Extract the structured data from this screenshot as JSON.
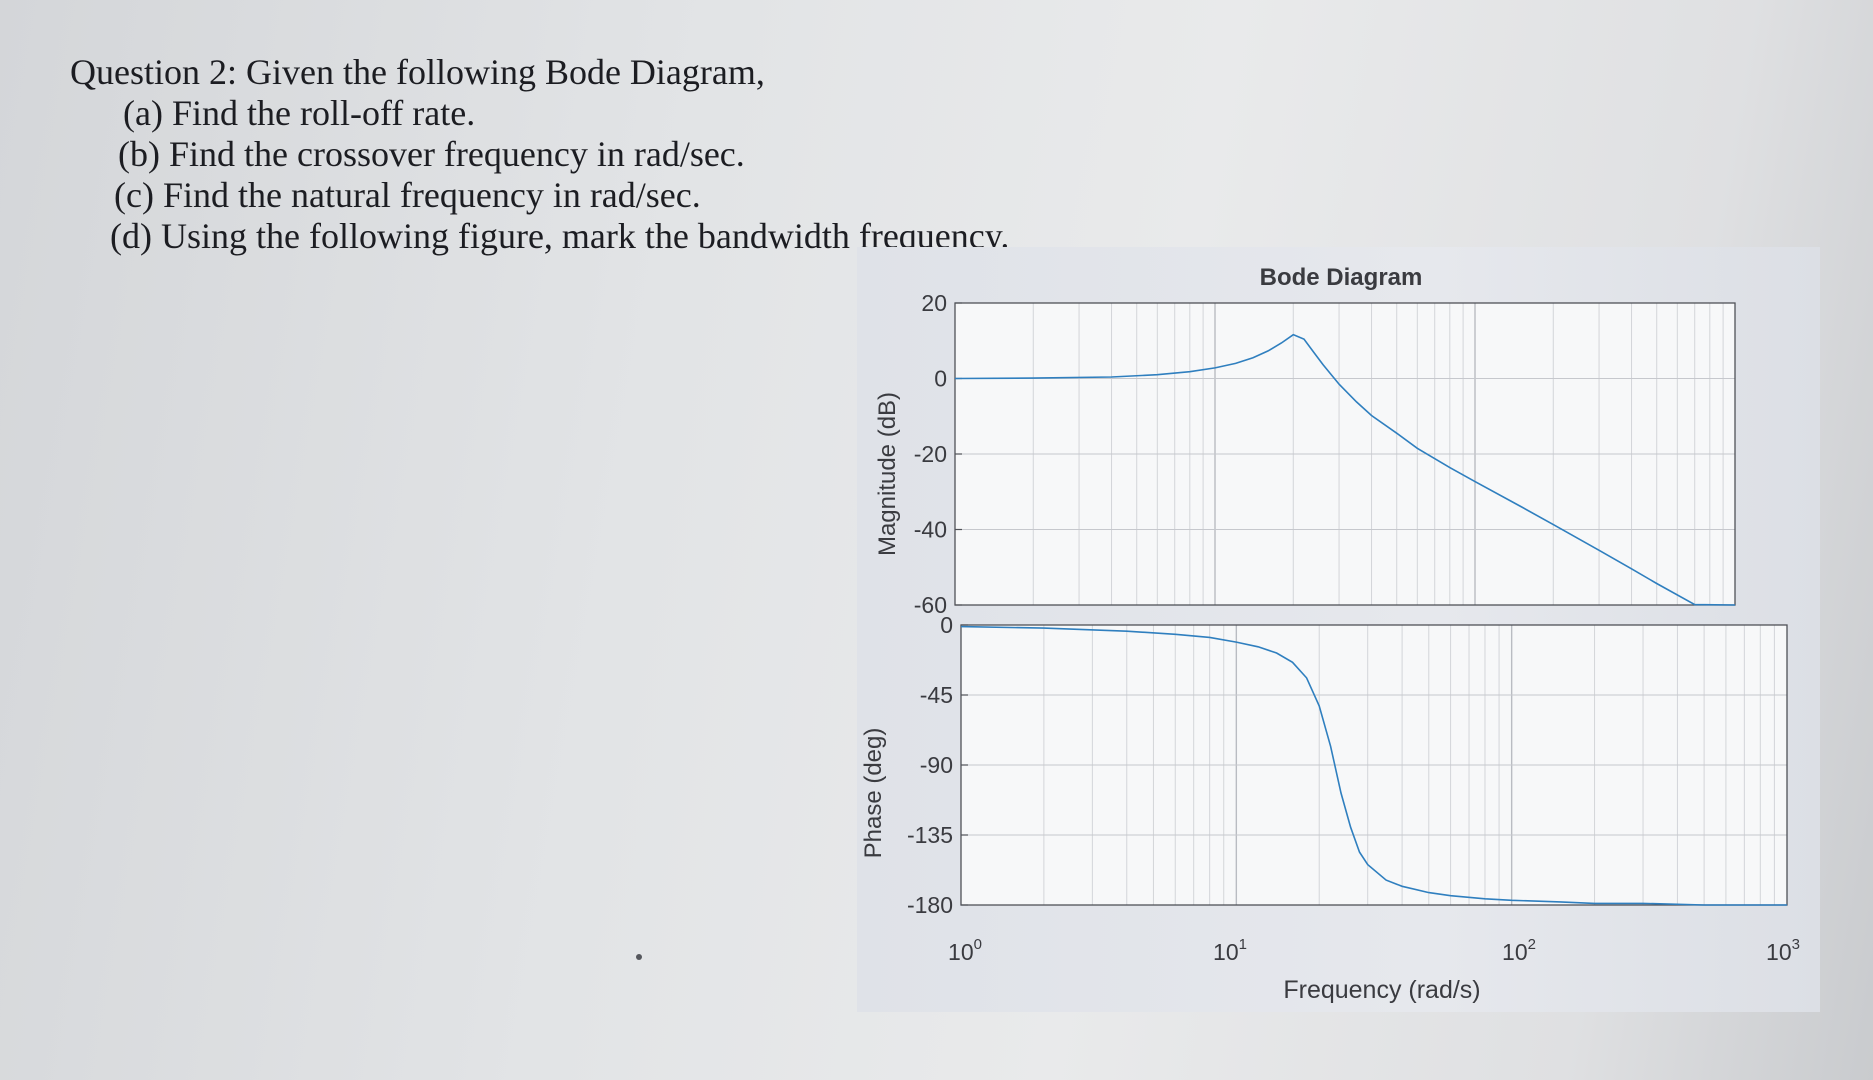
{
  "question": {
    "title": "Question 2: Given the following Bode Diagram,",
    "items": [
      "(a) Find the roll-off rate.",
      "(b) Find the crossover frequency in rad/sec.",
      "(c) Find the natural frequency in rad/sec.",
      "(d) Using the following figure, mark the bandwidth frequency."
    ]
  },
  "chart_data": [
    {
      "type": "line",
      "title": "Bode Diagram",
      "xscale": "log",
      "xlim": [
        1,
        1000
      ],
      "ylabel": "Magnitude (dB)",
      "ylim": [
        -60,
        20
      ],
      "yticks": [
        20,
        0,
        -20,
        -40,
        -60
      ],
      "grid": true,
      "series": [
        {
          "x": [
            1,
            2,
            4,
            6,
            8,
            10,
            12,
            14,
            16,
            18,
            20,
            22,
            24,
            26,
            28,
            30,
            35,
            40,
            50,
            60,
            80,
            100,
            150,
            200,
            300,
            400,
            500,
            700,
            1000
          ],
          "values": [
            0,
            0.1,
            0.4,
            1,
            1.8,
            2.8,
            4,
            5.5,
            7.3,
            9.4,
            11.6,
            10.4,
            6.9,
            3.7,
            1,
            -1.5,
            -6.2,
            -9.8,
            -14.5,
            -18.5,
            -23.6,
            -27.3,
            -33.9,
            -38.7,
            -45.5,
            -50.4,
            -54.3,
            -59.9,
            -60
          ]
        }
      ]
    },
    {
      "type": "line",
      "xscale": "log",
      "xlim": [
        1,
        1000
      ],
      "xlabel": "Frequency  (rad/s)",
      "xticks": [
        "10^0",
        "10^1",
        "10^2",
        "10^3"
      ],
      "ylabel": "Phase (deg)",
      "ylim": [
        -180,
        0
      ],
      "yticks": [
        0,
        -45,
        -90,
        -135,
        -180
      ],
      "grid": true,
      "series": [
        {
          "x": [
            1,
            2,
            4,
            6,
            8,
            10,
            12,
            14,
            16,
            18,
            20,
            22,
            24,
            26,
            28,
            30,
            35,
            40,
            50,
            60,
            80,
            100,
            150,
            200,
            300,
            500,
            700,
            1000
          ],
          "values": [
            -1,
            -2,
            -4,
            -6,
            -8,
            -11,
            -14,
            -18,
            -24,
            -34,
            -52,
            -78,
            -108,
            -130,
            -146,
            -154,
            -164,
            -168,
            -172,
            -174,
            -176,
            -177,
            -178,
            -179,
            -179,
            -180,
            -180,
            -180
          ]
        }
      ]
    }
  ]
}
